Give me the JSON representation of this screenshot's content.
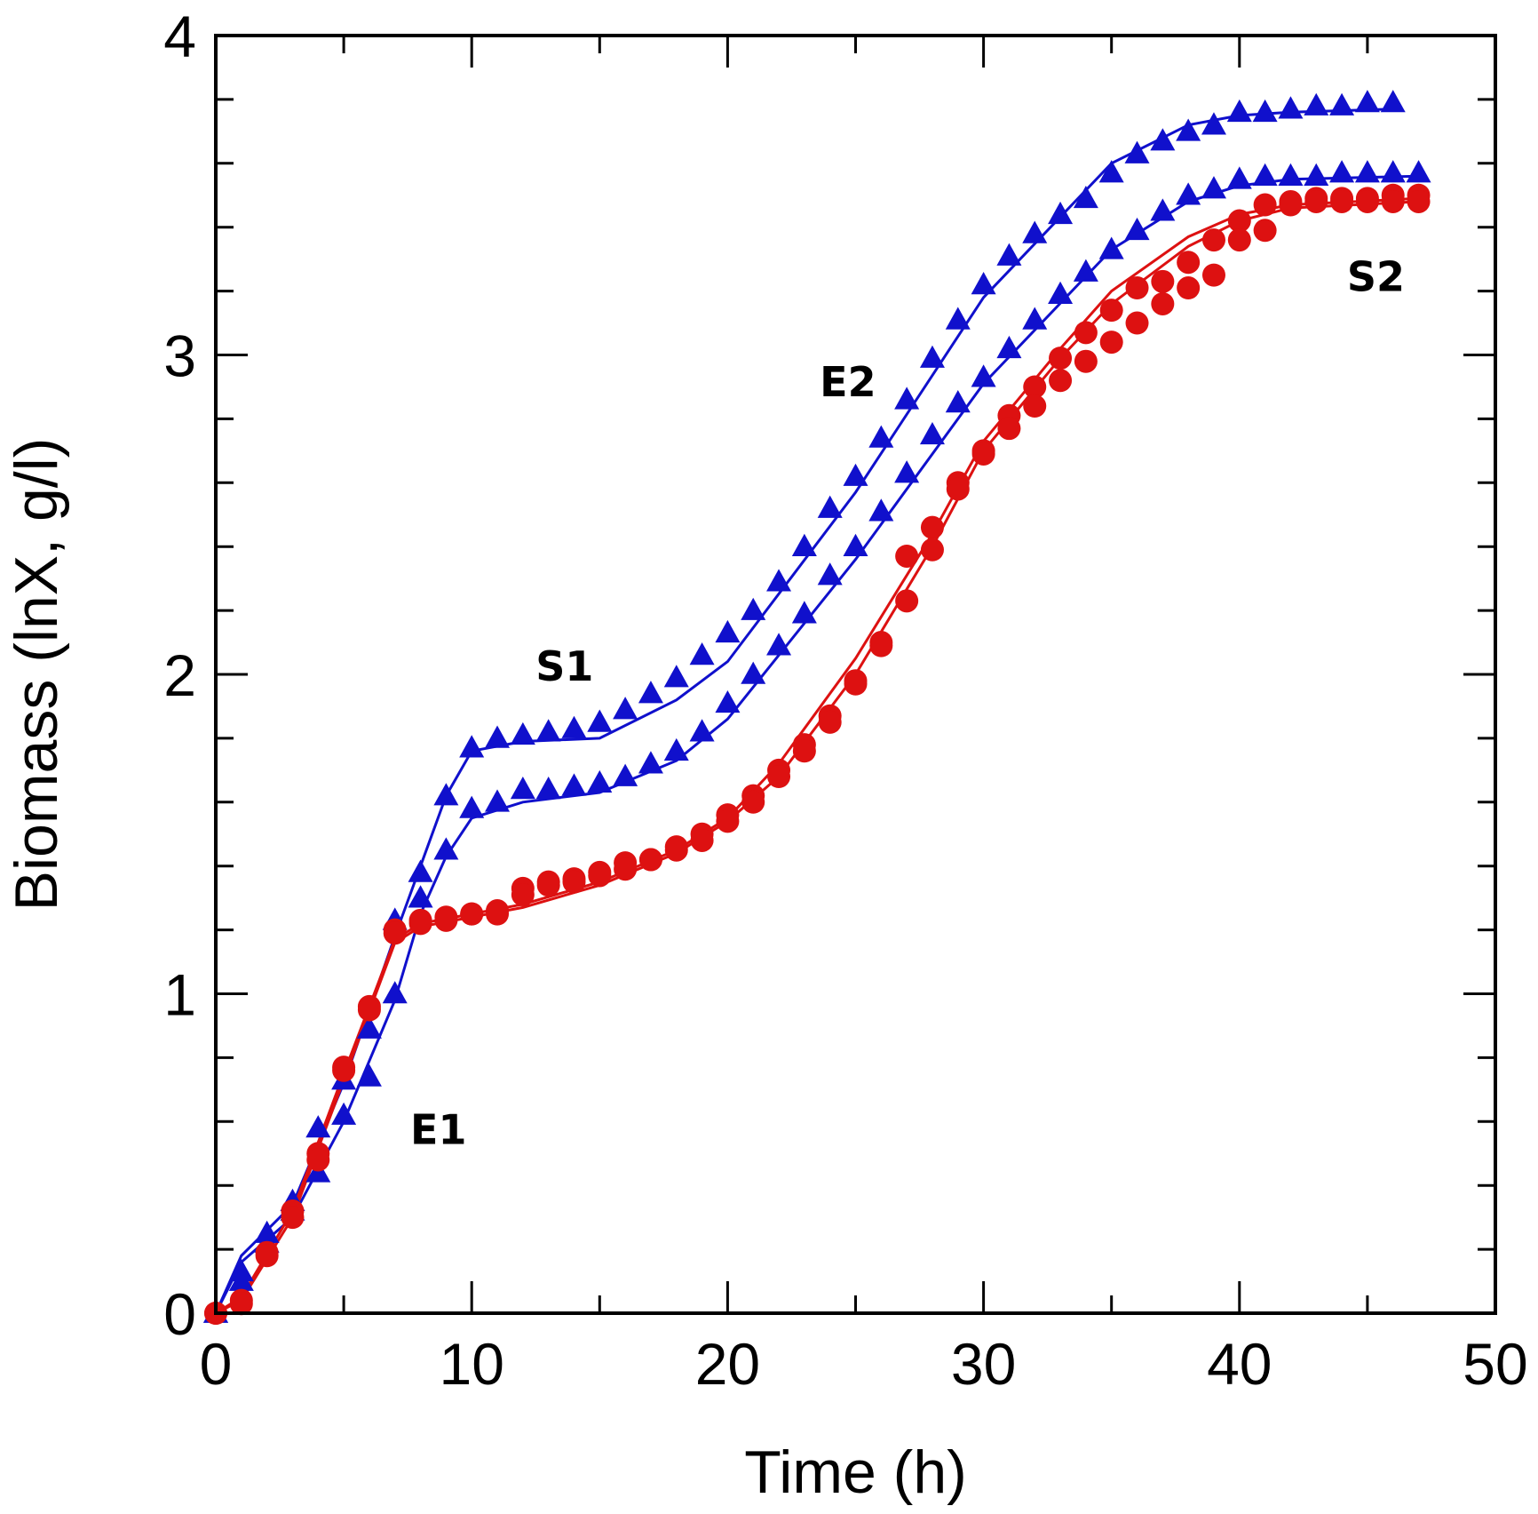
{
  "chart_data": {
    "type": "scatter",
    "title": "",
    "xlabel": "Time (h)",
    "ylabel": "Biomass (lnX, g/l)",
    "xlim": [
      0,
      50
    ],
    "ylim": [
      0,
      4
    ],
    "xticks": [
      0,
      10,
      20,
      30,
      40,
      50
    ],
    "yticks": [
      0,
      1,
      2,
      3,
      4
    ],
    "colors": {
      "blue": "#1010cc",
      "red": "#dd1111"
    },
    "annotations": [
      {
        "text": "S1",
        "x": 12.5,
        "y": 1.98
      },
      {
        "text": "E1",
        "x": 7.6,
        "y": 0.53
      },
      {
        "text": "E2",
        "x": 23.6,
        "y": 2.87
      },
      {
        "text": "S2",
        "x": 44.2,
        "y": 3.2
      }
    ],
    "series": [
      {
        "name": "Blue triangles (upper)",
        "color": "blue",
        "marker": "triangle",
        "x": [
          0,
          1,
          2,
          3,
          4,
          5,
          6,
          7,
          8,
          9,
          10,
          11,
          12,
          13,
          14,
          15,
          16,
          17,
          18,
          19,
          20,
          21,
          22,
          23,
          24,
          25,
          26,
          27,
          28,
          29,
          30,
          31,
          32,
          33,
          34,
          35,
          36,
          37,
          38,
          39,
          40,
          41,
          42,
          43,
          44,
          45,
          46
        ],
        "y": [
          0,
          0.13,
          0.25,
          0.35,
          0.58,
          0.73,
          0.89,
          1.23,
          1.38,
          1.62,
          1.77,
          1.8,
          1.81,
          1.82,
          1.83,
          1.85,
          1.89,
          1.94,
          1.99,
          2.06,
          2.13,
          2.2,
          2.29,
          2.4,
          2.52,
          2.62,
          2.74,
          2.86,
          2.99,
          3.11,
          3.22,
          3.31,
          3.38,
          3.44,
          3.49,
          3.57,
          3.63,
          3.67,
          3.7,
          3.72,
          3.76,
          3.76,
          3.77,
          3.78,
          3.78,
          3.79,
          3.79
        ]
      },
      {
        "name": "Blue triangles (lower)",
        "color": "blue",
        "marker": "triangle",
        "x": [
          0,
          1,
          2,
          3,
          4,
          5,
          6,
          7,
          8,
          9,
          10,
          11,
          12,
          13,
          14,
          15,
          16,
          17,
          18,
          19,
          20,
          21,
          22,
          23,
          24,
          25,
          26,
          27,
          28,
          29,
          30,
          31,
          32,
          33,
          34,
          35,
          36,
          37,
          38,
          39,
          40,
          41,
          42,
          43,
          44,
          45,
          46,
          47
        ],
        "y": [
          0,
          0.1,
          0.22,
          0.32,
          0.44,
          0.62,
          0.74,
          1.0,
          1.3,
          1.45,
          1.58,
          1.6,
          1.64,
          1.64,
          1.65,
          1.66,
          1.68,
          1.72,
          1.76,
          1.82,
          1.91,
          2.0,
          2.09,
          2.19,
          2.31,
          2.4,
          2.51,
          2.63,
          2.75,
          2.85,
          2.93,
          3.02,
          3.11,
          3.19,
          3.26,
          3.33,
          3.39,
          3.45,
          3.5,
          3.52,
          3.55,
          3.56,
          3.56,
          3.56,
          3.57,
          3.57,
          3.57,
          3.57
        ]
      },
      {
        "name": "Red circles (upper)",
        "color": "red",
        "marker": "circle",
        "x": [
          0,
          1,
          2,
          3,
          4,
          5,
          6,
          7,
          8,
          9,
          10,
          11,
          12,
          13,
          14,
          15,
          16,
          17,
          18,
          19,
          20,
          21,
          22,
          23,
          24,
          25,
          26,
          27,
          28,
          29,
          30,
          31,
          32,
          33,
          34,
          35,
          36,
          37,
          38,
          39,
          40,
          41,
          42,
          43,
          44,
          45,
          46,
          47
        ],
        "y": [
          0,
          0.04,
          0.19,
          0.32,
          0.5,
          0.77,
          0.96,
          1.2,
          1.23,
          1.24,
          1.25,
          1.26,
          1.33,
          1.35,
          1.36,
          1.38,
          1.41,
          1.42,
          1.46,
          1.5,
          1.56,
          1.62,
          1.7,
          1.78,
          1.87,
          1.97,
          2.1,
          2.37,
          2.46,
          2.6,
          2.7,
          2.81,
          2.9,
          2.99,
          3.07,
          3.14,
          3.21,
          3.23,
          3.29,
          3.36,
          3.42,
          3.47,
          3.48,
          3.49,
          3.49,
          3.49,
          3.5,
          3.5
        ]
      },
      {
        "name": "Red circles (lower)",
        "color": "red",
        "marker": "circle",
        "x": [
          0,
          1,
          2,
          3,
          4,
          5,
          6,
          7,
          8,
          9,
          10,
          11,
          12,
          13,
          14,
          15,
          16,
          17,
          18,
          19,
          20,
          21,
          22,
          23,
          24,
          25,
          26,
          27,
          28,
          29,
          30,
          31,
          32,
          33,
          34,
          35,
          36,
          37,
          38,
          39,
          40,
          41,
          42,
          43,
          44,
          45,
          46,
          47
        ],
        "y": [
          0,
          0.03,
          0.18,
          0.3,
          0.48,
          0.76,
          0.95,
          1.19,
          1.22,
          1.23,
          1.25,
          1.25,
          1.31,
          1.34,
          1.35,
          1.37,
          1.39,
          1.42,
          1.45,
          1.48,
          1.54,
          1.6,
          1.68,
          1.76,
          1.85,
          1.98,
          2.09,
          2.23,
          2.39,
          2.58,
          2.69,
          2.77,
          2.84,
          2.92,
          2.98,
          3.04,
          3.1,
          3.16,
          3.21,
          3.25,
          3.36,
          3.39,
          3.47,
          3.48,
          3.48,
          3.48,
          3.48,
          3.48
        ]
      }
    ],
    "fit_lines": [
      {
        "name": "Blue fit (upper)",
        "color": "blue",
        "x": [
          0,
          1,
          3,
          5,
          7,
          8,
          9,
          10,
          12,
          15,
          18,
          20,
          25,
          30,
          35,
          38,
          40,
          42,
          46
        ],
        "y": [
          0,
          0.18,
          0.34,
          0.72,
          1.18,
          1.4,
          1.62,
          1.76,
          1.79,
          1.8,
          1.92,
          2.04,
          2.57,
          3.18,
          3.6,
          3.72,
          3.75,
          3.76,
          3.77
        ]
      },
      {
        "name": "Blue fit (lower)",
        "color": "blue",
        "x": [
          0,
          1,
          3,
          5,
          7,
          8,
          9,
          10,
          12,
          15,
          18,
          20,
          25,
          30,
          35,
          38,
          40,
          42,
          47
        ],
        "y": [
          0,
          0.16,
          0.3,
          0.6,
          0.98,
          1.25,
          1.43,
          1.55,
          1.6,
          1.63,
          1.73,
          1.86,
          2.36,
          2.91,
          3.33,
          3.48,
          3.53,
          3.55,
          3.56
        ]
      },
      {
        "name": "Red fit (upper)",
        "color": "red",
        "x": [
          0,
          1,
          3,
          5,
          7,
          8,
          10,
          12,
          15,
          18,
          20,
          22,
          25,
          28,
          30,
          33,
          35,
          38,
          40,
          42,
          47
        ],
        "y": [
          0,
          0.05,
          0.32,
          0.75,
          1.17,
          1.22,
          1.25,
          1.28,
          1.35,
          1.45,
          1.55,
          1.72,
          2.05,
          2.44,
          2.73,
          3.02,
          3.2,
          3.37,
          3.44,
          3.47,
          3.49
        ]
      },
      {
        "name": "Red fit (lower)",
        "color": "red",
        "x": [
          0,
          1,
          3,
          5,
          7,
          8,
          10,
          12,
          15,
          18,
          20,
          22,
          25,
          28,
          30,
          33,
          35,
          38,
          40,
          42,
          47
        ],
        "y": [
          0,
          0.04,
          0.3,
          0.73,
          1.16,
          1.21,
          1.24,
          1.27,
          1.34,
          1.44,
          1.54,
          1.68,
          2.0,
          2.4,
          2.7,
          2.99,
          3.16,
          3.34,
          3.42,
          3.46,
          3.48
        ]
      }
    ]
  }
}
